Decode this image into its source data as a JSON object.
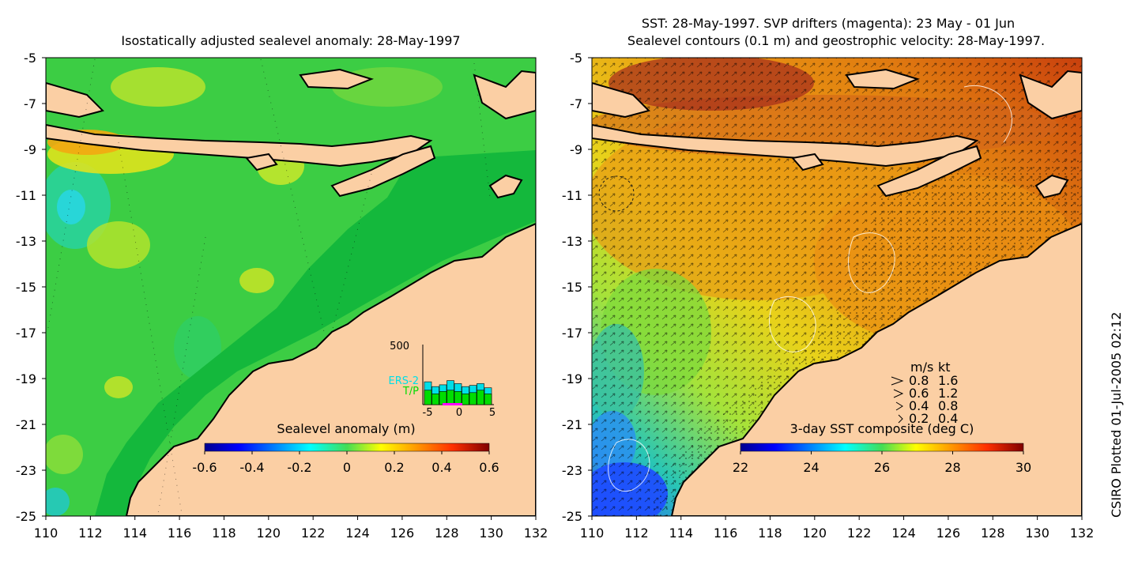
{
  "footer": {
    "credit": "CSIRO Plotted 01-Jul-2005 02:12"
  },
  "colors": {
    "land": "#fbcfa4",
    "coast": "#000000",
    "ers2": "#00dfe8",
    "tp": "#00dd00",
    "drifter": "#ff00ff",
    "contour": "#ffffff"
  },
  "chart_data": [
    {
      "type": "heatmap",
      "title": "Isostatically adjusted sealevel anomaly: 28-May-1997",
      "xlabel": "",
      "ylabel": "",
      "xlim": [
        110,
        132
      ],
      "ylim": [
        -25,
        -5
      ],
      "x_ticks": [
        "110",
        "112",
        "114",
        "116",
        "118",
        "120",
        "122",
        "124",
        "126",
        "128",
        "130",
        "132"
      ],
      "y_ticks": [
        "-5",
        "-7",
        "-9",
        "-11",
        "-13",
        "-15",
        "-17",
        "-19",
        "-21",
        "-23",
        "-25"
      ],
      "colorbar": {
        "label": "Sealevel anomaly (m)",
        "range": [
          -0.6,
          0.6
        ],
        "ticks": [
          "-0.6",
          "-0.4",
          "-0.2",
          "0",
          "0.2",
          "0.4",
          "0.6"
        ],
        "colormap": "jet"
      },
      "inset_histogram": {
        "y_tick": "500",
        "x_ticks": [
          "-5",
          "0",
          "5"
        ],
        "series": [
          {
            "name": "ERS-2",
            "values": [
              190,
              150,
              165,
              200,
              175,
              150,
              160,
              175,
              140
            ]
          },
          {
            "name": "T/P",
            "values": [
              120,
              90,
              110,
              120,
              110,
              90,
              100,
              120,
              90
            ]
          }
        ]
      }
    },
    {
      "type": "heatmap",
      "title_line1": "SST: 28-May-1997. SVP drifters (magenta): 23 May - 01 Jun",
      "title_line2": "Sealevel contours (0.1 m) and geostrophic velocity: 28-May-1997.",
      "xlabel": "",
      "ylabel": "",
      "xlim": [
        110,
        132
      ],
      "ylim": [
        -25,
        -5
      ],
      "x_ticks": [
        "110",
        "112",
        "114",
        "116",
        "118",
        "120",
        "122",
        "124",
        "126",
        "128",
        "130",
        "132"
      ],
      "y_ticks": [
        "-5",
        "-7",
        "-9",
        "-11",
        "-13",
        "-15",
        "-17",
        "-19",
        "-21",
        "-23",
        "-25"
      ],
      "colorbar": {
        "label": "3-day SST composite (deg C)",
        "range": [
          22,
          30
        ],
        "ticks": [
          "22",
          "24",
          "26",
          "28",
          "30"
        ],
        "colormap": "jet"
      },
      "velocity_legend": {
        "header": [
          "m/s",
          "kt"
        ],
        "rows": [
          [
            "0.8",
            "1.6"
          ],
          [
            "0.6",
            "1.2"
          ],
          [
            "0.4",
            "0.8"
          ],
          [
            "0.2",
            "0.4"
          ]
        ]
      }
    }
  ]
}
